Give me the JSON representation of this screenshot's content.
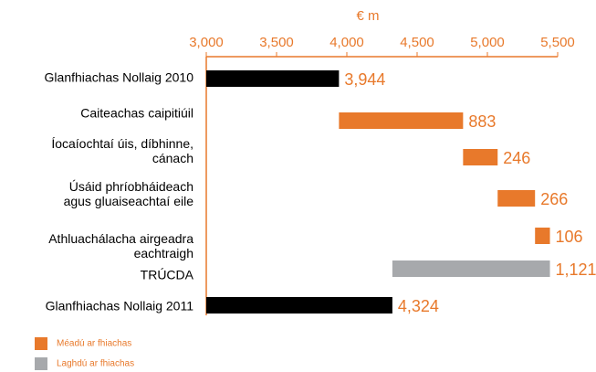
{
  "chart_data": {
    "type": "waterfall",
    "xlabel": "€ m",
    "categories": [
      "Glanfhiachas Nollaig 2010",
      "Caiteachas caipitiúil",
      "Íocaíochtaí úis, díbhinne,\ncánach",
      "Úsáid phríobháideach\nagus gluaiseachtaí eile",
      "Athluachálacha airgeadra\neachtraigh",
      "TRÚCDA",
      "Glanfhiachas Nollaig 2011"
    ],
    "values": [
      3944,
      883,
      246,
      266,
      106,
      1121,
      4324
    ],
    "value_labels": [
      "3,944",
      "883",
      "246",
      "266",
      "106",
      "1,121",
      "4,324"
    ],
    "measure": [
      "total",
      "increase",
      "increase",
      "increase",
      "increase",
      "decrease",
      "total"
    ],
    "total_color": "#000000",
    "legend": [
      {
        "name": "Méadú ar fhiachas",
        "color": "#e8792b"
      },
      {
        "name": "Laghdú ar fhiachas",
        "color": "#a7a9ac"
      }
    ],
    "xlim": [
      3000,
      5500
    ],
    "xticks": [
      {
        "value": 3000,
        "label": "3,000"
      },
      {
        "value": 3500,
        "label": "3,500"
      },
      {
        "value": 4000,
        "label": "4,000"
      },
      {
        "value": 4500,
        "label": "4,500"
      },
      {
        "value": 5000,
        "label": "5,000"
      },
      {
        "value": 5500,
        "label": "5,500"
      }
    ]
  }
}
